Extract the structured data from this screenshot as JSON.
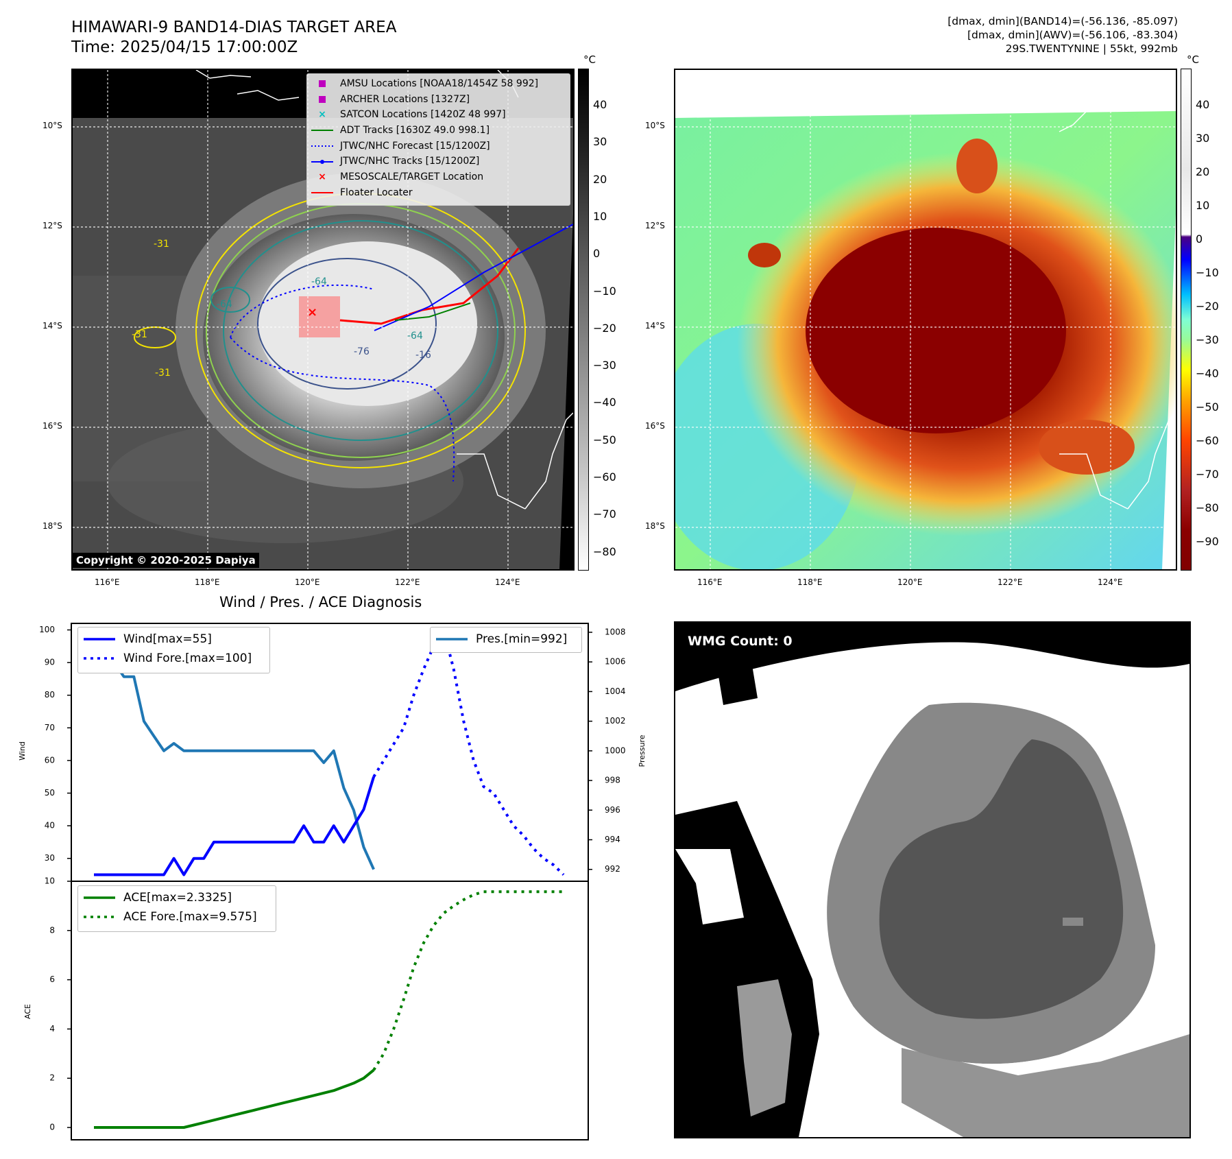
{
  "header": {
    "title": "HIMAWARI-9 BAND14-DIAS TARGET AREA",
    "time": "Time: 2025/04/15 17:00:00Z",
    "info_line1": "[dmax, dmin](BAND14)=(-56.136, -85.097)",
    "info_line2": "[dmax, dmin](AWV)=(-56.106, -83.304)",
    "info_line3": "29S.TWENTYNINE | 55kt, 992mb"
  },
  "ir_panel": {
    "lat_labels": [
      "10°S",
      "12°S",
      "14°S",
      "16°S",
      "18°S"
    ],
    "lon_labels": [
      "116°E",
      "118°E",
      "120°E",
      "122°E",
      "124°E"
    ],
    "contour_labels": [
      "-64",
      "-76",
      "-31",
      "-31",
      "-31",
      "-64",
      "-64",
      "-16"
    ],
    "copyright": "Copyright © 2020-2025 Dapiya",
    "legend": [
      {
        "label": "AMSU Locations [NOAA18/1454Z 58 992]",
        "symbol": "square",
        "color": "#bf00bf"
      },
      {
        "label": "ARCHER Locations [1327Z]",
        "symbol": "square",
        "color": "#bf00bf"
      },
      {
        "label": "SATCON Locations [1420Z 48 997]",
        "symbol": "x",
        "color": "#00bfbf"
      },
      {
        "label": "ADT Tracks [1630Z 49.0 998.1]",
        "symbol": "line",
        "color": "#008000"
      },
      {
        "label": "JTWC/NHC Forecast [15/1200Z]",
        "symbol": "dotted",
        "color": "#0000ff"
      },
      {
        "label": "JTWC/NHC Tracks [15/1200Z]",
        "symbol": "line-dot",
        "color": "#0000ff"
      },
      {
        "label": "MESOSCALE/TARGET Location",
        "symbol": "x",
        "color": "#ff0000"
      },
      {
        "label": "Floater Locater",
        "symbol": "line",
        "color": "#ff0000"
      }
    ],
    "colorbar": {
      "unit": "°C",
      "ticks": [
        "40",
        "30",
        "20",
        "10",
        "0",
        "−10",
        "−20",
        "−30",
        "−40",
        "−50",
        "−60",
        "−70",
        "−80"
      ]
    }
  },
  "color_panel": {
    "lat_labels": [
      "10°S",
      "12°S",
      "14°S",
      "16°S",
      "18°S"
    ],
    "lon_labels": [
      "116°E",
      "118°E",
      "120°E",
      "122°E",
      "124°E"
    ],
    "colorbar": {
      "unit": "°C",
      "ticks": [
        "40",
        "30",
        "20",
        "10",
        "0",
        "−10",
        "−20",
        "−30",
        "−40",
        "−50",
        "−60",
        "−70",
        "−80",
        "−90"
      ]
    }
  },
  "diag_title": "Wind / Pres. / ACE Diagnosis",
  "wmg_panel": {
    "label": "WMG Count: 0"
  },
  "chart_data": [
    {
      "type": "line",
      "title": "Wind / Pres. / ACE Diagnosis",
      "ylabel": "Wind",
      "y2label": "Pressure",
      "ylim": [
        23,
        102
      ],
      "y2lim": [
        991.2,
        1008.6
      ],
      "yticks": [
        "100",
        "90",
        "80",
        "70",
        "60",
        "50",
        "40",
        "30"
      ],
      "y2ticks": [
        "1008",
        "1006",
        "1004",
        "1002",
        "1000",
        "998",
        "996",
        "994",
        "992"
      ],
      "legend_left": [
        "Wind[max=55]",
        "Wind Fore.[max=100]"
      ],
      "legend_right": [
        "Pres.[min=992]"
      ],
      "series": [
        {
          "name": "Wind[max=55]",
          "axis": "left",
          "color": "#0000ff",
          "style": "solid",
          "values": [
            25,
            25,
            25,
            25,
            25,
            25,
            25,
            25,
            30,
            25,
            30,
            30,
            35,
            35,
            35,
            35,
            35,
            35,
            35,
            35,
            35,
            40,
            35,
            35,
            40,
            35,
            40,
            45,
            55
          ]
        },
        {
          "name": "Wind Fore.[max=100]",
          "axis": "left",
          "color": "#0000ff",
          "style": "dotted",
          "values": [
            55,
            60,
            65,
            70,
            80,
            88,
            95,
            100,
            88,
            72,
            60,
            52,
            50,
            45,
            40,
            37,
            33,
            30,
            28,
            25
          ]
        },
        {
          "name": "Pres.[min=992]",
          "axis": "right",
          "color": "#1f77b4",
          "style": "solid",
          "values": [
            1008,
            1006,
            1006,
            1005,
            1005,
            1002,
            1001,
            1000,
            1000.5,
            1000,
            1000,
            1000,
            1000,
            1000,
            1000,
            1000,
            1000,
            1000,
            1000,
            1000,
            1000,
            1000,
            1000,
            999.2,
            1000,
            997.5,
            996,
            993.5,
            992
          ]
        }
      ]
    },
    {
      "type": "line",
      "ylabel": "ACE",
      "ylim": [
        -0.5,
        10
      ],
      "yticks": [
        "10",
        "8",
        "6",
        "4",
        "2",
        "0"
      ],
      "legend": [
        "ACE[max=2.3325]",
        "ACE Fore.[max=9.575]"
      ],
      "series": [
        {
          "name": "ACE[max=2.3325]",
          "color": "#008000",
          "style": "solid",
          "values": [
            0,
            0,
            0,
            0,
            0,
            0,
            0,
            0,
            0,
            0,
            0.1,
            0.2,
            0.3,
            0.4,
            0.5,
            0.6,
            0.7,
            0.8,
            0.9,
            1.0,
            1.1,
            1.2,
            1.3,
            1.4,
            1.5,
            1.65,
            1.8,
            2.0,
            2.3325
          ]
        },
        {
          "name": "ACE Fore.[max=9.575]",
          "color": "#008000",
          "style": "dotted",
          "values": [
            2.3325,
            3.0,
            4.0,
            5.2,
            6.5,
            7.5,
            8.2,
            8.7,
            9.0,
            9.25,
            9.45,
            9.575,
            9.575,
            9.575,
            9.575,
            9.575,
            9.575,
            9.575,
            9.575,
            9.575
          ]
        }
      ]
    }
  ],
  "colors": {
    "wind": "#0000ff",
    "pressure": "#1f77b4",
    "ace": "#008000",
    "floater": "#ff0000"
  }
}
